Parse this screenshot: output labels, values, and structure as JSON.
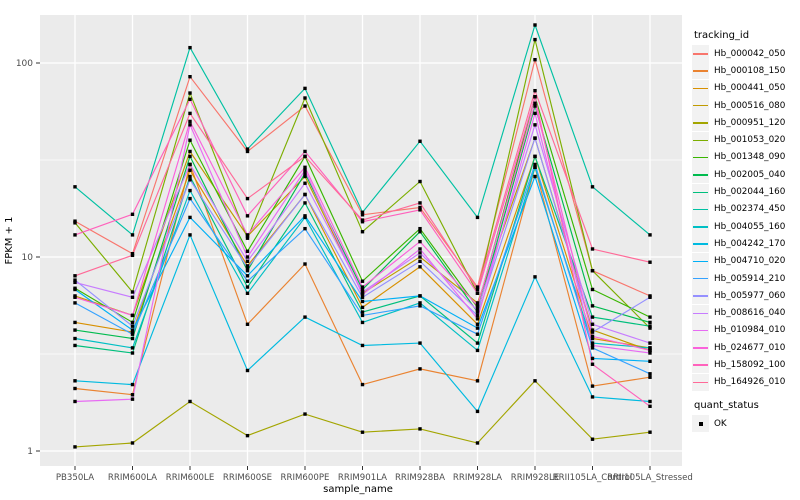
{
  "chart_data": {
    "type": "line",
    "xlabel": "sample_name",
    "ylabel": "FPKM + 1",
    "y_scale": "log10",
    "y_ticks": [
      1,
      10,
      100
    ],
    "y_minor_ticks": [
      3.1623,
      31.623
    ],
    "ylim": [
      0.85,
      180
    ],
    "grid": true,
    "panel_bg": "#EBEBEB",
    "grid_color": "#FFFFFF",
    "point_marker": "black-square",
    "legend_position": "right",
    "legend_title": "tracking_id",
    "quant_legend": {
      "title": "quant_status",
      "items": [
        {
          "label": "OK",
          "marker": "black-square"
        }
      ]
    },
    "x_categories": [
      "PB350LA",
      "RRIM600LA",
      "RRIM600LE",
      "RRIM600SE",
      "RRIM600PE",
      "RRIM901LA",
      "RRIM928BA",
      "RRIM928LA",
      "RRIM928LE",
      "RRII105LA_Control",
      "RRII105LA_Stressed"
    ],
    "series": [
      {
        "name": "Hb_000042_050",
        "color": "#F8766D",
        "values": [
          15.3,
          10.4,
          85,
          35,
          60,
          16.5,
          18,
          7.0,
          104,
          8.5,
          6.3
        ]
      },
      {
        "name": "Hb_000108_150",
        "color": "#EA8331",
        "values": [
          2.1,
          1.95,
          30,
          4.5,
          9.2,
          2.2,
          2.65,
          2.3,
          29,
          2.16,
          2.4
        ]
      },
      {
        "name": "Hb_000441_050",
        "color": "#D89000",
        "values": [
          4.6,
          4.1,
          28,
          9.0,
          21,
          5.5,
          8.9,
          4.5,
          33,
          3.8,
          3.4
        ]
      },
      {
        "name": "Hb_000516_080",
        "color": "#C09B00",
        "values": [
          6.3,
          5.0,
          35,
          12.8,
          26,
          6.5,
          10,
          5.8,
          41,
          4.2,
          3.3
        ]
      },
      {
        "name": "Hb_000951_120",
        "color": "#A3A500",
        "values": [
          1.05,
          1.1,
          1.8,
          1.2,
          1.55,
          1.25,
          1.3,
          1.1,
          2.3,
          1.15,
          1.25
        ]
      },
      {
        "name": "Hb_001053_020",
        "color": "#7CAE00",
        "values": [
          15.0,
          6.6,
          70,
          12.5,
          66,
          13.5,
          24.5,
          6.5,
          132,
          8.5,
          4.3
        ]
      },
      {
        "name": "Hb_001348_090",
        "color": "#39B600",
        "values": [
          6.9,
          4.6,
          40,
          10.7,
          33,
          7.5,
          14,
          5.5,
          67,
          6.8,
          4.9
        ]
      },
      {
        "name": "Hb_002005_040",
        "color": "#00BB4E",
        "values": [
          4.2,
          3.8,
          33,
          8.5,
          27,
          6.8,
          13.5,
          5.2,
          60,
          5.6,
          4.6
        ]
      },
      {
        "name": "Hb_002044_160",
        "color": "#00BF7D",
        "values": [
          3.5,
          3.2,
          26,
          7.0,
          19,
          5.2,
          6.3,
          3.6,
          33,
          4.9,
          4.4
        ]
      },
      {
        "name": "Hb_002374_450",
        "color": "#00C1A3",
        "values": [
          23,
          13,
          120,
          36,
          74,
          17,
          39.5,
          16,
          157,
          23,
          13
        ]
      },
      {
        "name": "Hb_004055_160",
        "color": "#00BFC4",
        "values": [
          3.8,
          3.4,
          22,
          6.5,
          16,
          4.6,
          5.8,
          3.3,
          29,
          3.6,
          3.4
        ]
      },
      {
        "name": "Hb_004242_170",
        "color": "#00BAE0",
        "values": [
          2.3,
          2.2,
          13,
          2.6,
          4.9,
          3.5,
          3.6,
          1.6,
          7.9,
          1.9,
          1.8
        ]
      },
      {
        "name": "Hb_004710_020",
        "color": "#00B0F6",
        "values": [
          6.8,
          4.2,
          16,
          8.0,
          16.3,
          5.9,
          6.3,
          4.3,
          26,
          3.0,
          2.9
        ]
      },
      {
        "name": "Hb_005914_210",
        "color": "#35A2FF",
        "values": [
          5.8,
          4.0,
          20,
          7.5,
          14,
          5.0,
          5.6,
          4.0,
          30,
          3.4,
          2.5
        ]
      },
      {
        "name": "Hb_005977_060",
        "color": "#9590FF",
        "values": [
          7.6,
          4.4,
          25,
          8.8,
          21,
          6.2,
          9.5,
          5.0,
          41,
          4.1,
          6.2
        ]
      },
      {
        "name": "Hb_008616_040",
        "color": "#C77CFF",
        "values": [
          7.4,
          6.2,
          30,
          9.5,
          24,
          6.6,
          10.5,
          5.3,
          48,
          4.5,
          3.6
        ]
      },
      {
        "name": "Hb_010984_010",
        "color": "#E76BF3",
        "values": [
          1.8,
          1.85,
          48,
          10,
          28,
          6.4,
          11,
          4.8,
          55,
          3.5,
          3.2
        ]
      },
      {
        "name": "Hb_024677_010",
        "color": "#FA62DB",
        "values": [
          6.2,
          5.0,
          50,
          13,
          29,
          7.0,
          12,
          5.6,
          62,
          3.9,
          3.3
        ]
      },
      {
        "name": "Hb_158092_100",
        "color": "#FF62BC",
        "values": [
          13,
          16.6,
          65,
          16.3,
          35,
          15.2,
          17.5,
          6.5,
          67,
          2.8,
          1.7
        ]
      },
      {
        "name": "Hb_164926_010",
        "color": "#FF6A98",
        "values": [
          8.0,
          10.2,
          55,
          20,
          33,
          15.5,
          19,
          6.8,
          72,
          11,
          9.4
        ]
      }
    ]
  }
}
